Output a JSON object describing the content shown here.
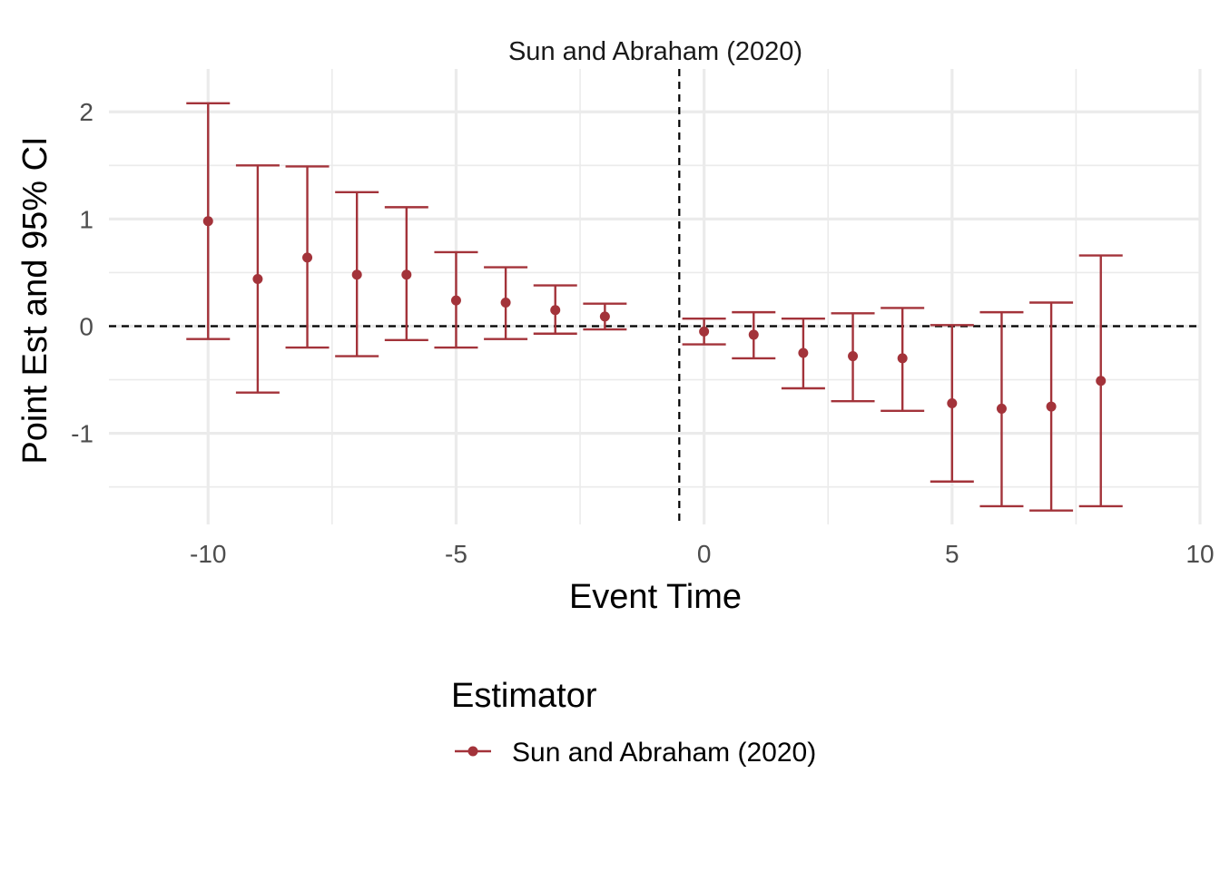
{
  "chart_data": {
    "type": "scatter",
    "title": "Sun and Abraham (2020)",
    "xlabel": "Event Time",
    "ylabel": "Point Est and 95% CI",
    "xlim": [
      -12,
      10
    ],
    "ylim": [
      -1.85,
      2.4
    ],
    "x_ticks": [
      -10,
      -5,
      0,
      5,
      10
    ],
    "x_tick_labels": [
      "-10",
      "-5",
      "0",
      "5",
      "10"
    ],
    "y_ticks": [
      -1,
      0,
      1,
      2
    ],
    "y_tick_labels": [
      "-1",
      "0",
      "1",
      "2"
    ],
    "grid": true,
    "reference_lines": {
      "horizontal_y": 0,
      "vertical_x": -0.5,
      "style": "dashed"
    },
    "legend": {
      "title": "Estimator",
      "placement": "bottom"
    },
    "series": [
      {
        "name": "Sun and Abraham (2020)",
        "color": "#a3333a",
        "points": [
          {
            "x": -10,
            "y": 0.98,
            "lo": -0.12,
            "hi": 2.08
          },
          {
            "x": -9,
            "y": 0.44,
            "lo": -0.62,
            "hi": 1.5
          },
          {
            "x": -8,
            "y": 0.64,
            "lo": -0.2,
            "hi": 1.49
          },
          {
            "x": -7,
            "y": 0.48,
            "lo": -0.28,
            "hi": 1.25
          },
          {
            "x": -6,
            "y": 0.48,
            "lo": -0.13,
            "hi": 1.11
          },
          {
            "x": -5,
            "y": 0.24,
            "lo": -0.2,
            "hi": 0.69
          },
          {
            "x": -4,
            "y": 0.22,
            "lo": -0.12,
            "hi": 0.55
          },
          {
            "x": -3,
            "y": 0.15,
            "lo": -0.07,
            "hi": 0.38
          },
          {
            "x": -2,
            "y": 0.09,
            "lo": -0.03,
            "hi": 0.21
          },
          {
            "x": 0,
            "y": -0.05,
            "lo": -0.17,
            "hi": 0.07
          },
          {
            "x": 1,
            "y": -0.08,
            "lo": -0.3,
            "hi": 0.13
          },
          {
            "x": 2,
            "y": -0.25,
            "lo": -0.58,
            "hi": 0.07
          },
          {
            "x": 3,
            "y": -0.28,
            "lo": -0.7,
            "hi": 0.12
          },
          {
            "x": 4,
            "y": -0.3,
            "lo": -0.79,
            "hi": 0.17
          },
          {
            "x": 5,
            "y": -0.72,
            "lo": -1.45,
            "hi": 0.01
          },
          {
            "x": 6,
            "y": -0.77,
            "lo": -1.68,
            "hi": 0.13
          },
          {
            "x": 7,
            "y": -0.75,
            "lo": -1.72,
            "hi": 0.22
          },
          {
            "x": 8,
            "y": -0.51,
            "lo": -1.68,
            "hi": 0.66
          }
        ]
      }
    ]
  }
}
